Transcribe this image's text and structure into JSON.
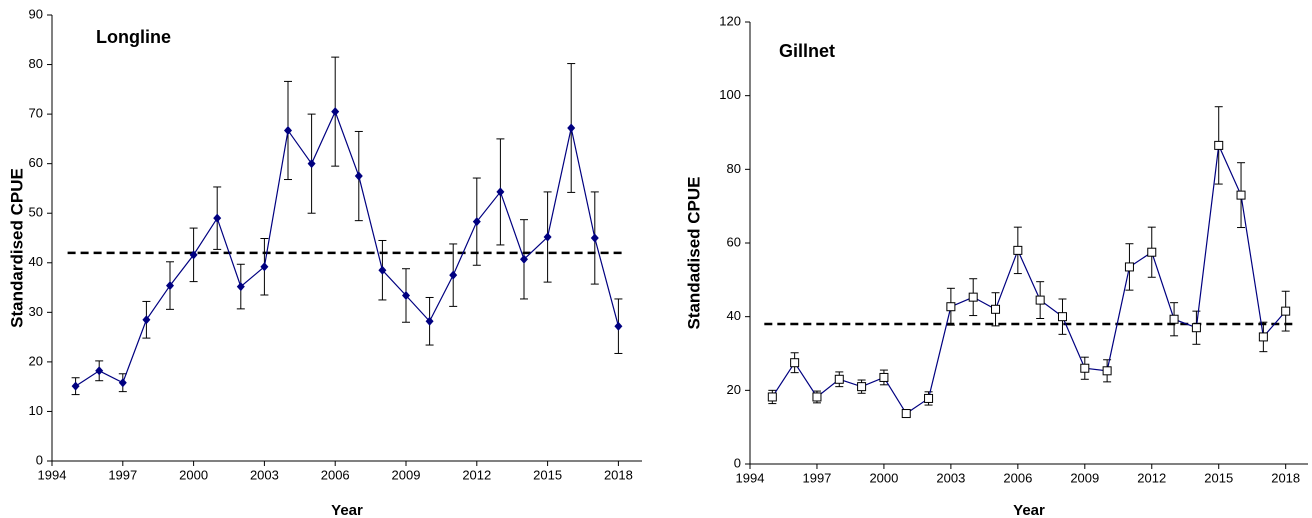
{
  "chart_data": [
    {
      "type": "line",
      "title": "Longline",
      "x_label": "Year",
      "y_label": "Standardised CPUE",
      "x": [
        1995,
        1996,
        1997,
        1998,
        1999,
        2000,
        2001,
        2002,
        2003,
        2004,
        2005,
        2006,
        2007,
        2008,
        2009,
        2010,
        2011,
        2012,
        2013,
        2014,
        2015,
        2016,
        2017,
        2018
      ],
      "values": [
        15.1,
        18.2,
        15.8,
        28.5,
        35.4,
        41.6,
        49,
        35.2,
        39.2,
        66.7,
        60,
        70.5,
        57.5,
        38.5,
        33.4,
        28.2,
        37.5,
        48.3,
        54.3,
        40.7,
        45.2,
        67.2,
        45,
        27.2
      ],
      "errors": [
        1.7,
        2,
        1.8,
        3.7,
        4.8,
        5.4,
        6.3,
        4.5,
        5.7,
        9.9,
        10,
        11,
        9,
        6,
        5.4,
        4.8,
        6.3,
        8.8,
        10.7,
        8,
        9.1,
        13,
        9.3,
        5.5
      ],
      "color": "#000080",
      "marker": "diamond",
      "reference_line": 42,
      "xlim": [
        1994,
        2019
      ],
      "xticks": [
        1994,
        1997,
        2000,
        2003,
        2006,
        2009,
        2012,
        2015,
        2018
      ],
      "ylim": [
        0,
        90
      ],
      "yticks": [
        0,
        10,
        20,
        30,
        40,
        50,
        60,
        70,
        80,
        90
      ]
    },
    {
      "type": "line",
      "title": "Gillnet",
      "x_label": "Year",
      "y_label": "Standadised CPUE",
      "x": [
        1995,
        1996,
        1997,
        1998,
        1999,
        2000,
        2001,
        2002,
        2003,
        2004,
        2005,
        2006,
        2007,
        2008,
        2009,
        2010,
        2011,
        2012,
        2013,
        2014,
        2015,
        2016,
        2017,
        2018
      ],
      "values": [
        18.2,
        27.5,
        18.2,
        23,
        21,
        23.5,
        13.7,
        17.8,
        42.7,
        45.3,
        42,
        58,
        44.5,
        40,
        26,
        25.3,
        53.5,
        57.5,
        39.3,
        37,
        86.5,
        73,
        34.5,
        41.5
      ],
      "errors": [
        1.8,
        2.7,
        1.6,
        2,
        1.8,
        2,
        1,
        1.8,
        5,
        5,
        4.5,
        6.3,
        5,
        4.8,
        3,
        3,
        6.3,
        6.8,
        4.5,
        4.5,
        10.5,
        8.8,
        4,
        5.4
      ],
      "color": "#000080",
      "marker": "square",
      "reference_line": 38,
      "xlim": [
        1994,
        2019
      ],
      "xticks": [
        1994,
        1997,
        2000,
        2003,
        2006,
        2009,
        2012,
        2015,
        2018
      ],
      "ylim": [
        0,
        120
      ],
      "yticks": [
        0,
        20,
        40,
        60,
        80,
        100,
        120
      ]
    }
  ]
}
